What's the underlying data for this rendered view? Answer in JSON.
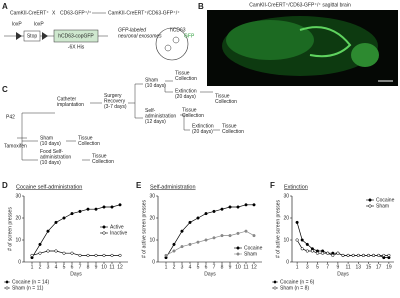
{
  "panels": {
    "letters": [
      "A",
      "B",
      "C",
      "D",
      "E",
      "F"
    ],
    "a": {
      "parent1": "CamKII-CreERT⁺",
      "cross": "X",
      "parent2": "CD63-GFP⁺/⁺",
      "offspring": "CamKII-CreERT⁺/CD63-GFP⁺/⁺",
      "loxp1": "loxP",
      "loxp2": "loxP",
      "stop": "Stop",
      "construct": "hCD63-copGFP",
      "tag": "-6X His",
      "exosome_lines": [
        "GFP-labeled",
        "neuronal exosomes"
      ],
      "hcd63": "hCD63",
      "gfp": "GFP"
    },
    "b": {
      "title": "CamKII-CreERT⁺/CD63-GFP⁺/⁺ sagittal brain"
    },
    "c": {
      "p42": "P42",
      "tamoxifen": "Tamoxifen",
      "nodes": [
        {
          "lines": [
            "Catheter",
            "implantation"
          ]
        },
        {
          "lines": [
            "Surgery",
            "Recovery",
            "(3-7 days)"
          ]
        },
        {
          "lines": [
            "Sham",
            "(10 days)"
          ]
        },
        {
          "lines": [
            "Tissue",
            "Collection"
          ]
        },
        {
          "lines": [
            "Extinction",
            "(20 days)"
          ]
        },
        {
          "lines": [
            "Tissue",
            "Collection"
          ]
        },
        {
          "lines": [
            "Self-",
            "administration",
            "(12 days)"
          ]
        },
        {
          "lines": [
            "Tissue",
            "Collection"
          ]
        },
        {
          "lines": [
            "Extinction",
            "(20 days)"
          ]
        },
        {
          "lines": [
            "Tissue",
            "Collection"
          ]
        },
        {
          "lines": [
            "Sham",
            "(10 days)"
          ]
        },
        {
          "lines": [
            "Tissue",
            "Collection"
          ]
        },
        {
          "lines": [
            "Food Self-",
            "administration",
            "(10 days)"
          ]
        },
        {
          "lines": [
            "Tissue",
            "Collection"
          ]
        }
      ]
    }
  },
  "chart_data": [
    {
      "type": "line",
      "title": "Cocaine self-administration",
      "xlabel": "Days",
      "ylabel": "# of screen presses",
      "x": [
        1,
        2,
        3,
        4,
        5,
        6,
        7,
        8,
        9,
        10,
        11,
        12
      ],
      "xlim": [
        0,
        13
      ],
      "xticks": [
        1,
        2,
        3,
        4,
        5,
        6,
        7,
        8,
        9,
        10,
        11,
        12
      ],
      "ylim": [
        0,
        30
      ],
      "yticks": [
        0,
        10,
        20,
        30
      ],
      "legend": "center right",
      "series": [
        {
          "name": "Active",
          "color": "#000000",
          "filled": true,
          "values": [
            2,
            8,
            14,
            18,
            20,
            22,
            23,
            24,
            24,
            25,
            25,
            26
          ]
        },
        {
          "name": "Inactive",
          "color": "#000000",
          "filled": false,
          "values": [
            3,
            4,
            5,
            5,
            4,
            4,
            3,
            3,
            3,
            3,
            3,
            3
          ]
        }
      ],
      "notes": [
        "Cocaine (n = 14)",
        "Sham (n = 11)"
      ]
    },
    {
      "type": "line",
      "title": "Self-administration",
      "xlabel": "Days",
      "ylabel": "# of active screen presses",
      "x": [
        1,
        2,
        3,
        4,
        5,
        6,
        7,
        8,
        9,
        10,
        11,
        12
      ],
      "xlim": [
        0,
        13
      ],
      "xticks": [
        1,
        2,
        3,
        4,
        5,
        6,
        7,
        8,
        9,
        10,
        11,
        12
      ],
      "ylim": [
        0,
        30
      ],
      "yticks": [
        0,
        10,
        20,
        30
      ],
      "legend": "lower right",
      "series": [
        {
          "name": "Cocaine",
          "color": "#000000",
          "filled": true,
          "values": [
            2,
            8,
            14,
            18,
            20,
            22,
            23,
            24,
            25,
            25,
            26,
            26
          ]
        },
        {
          "name": "Sham",
          "color": "#888888",
          "filled": true,
          "values": [
            3,
            5,
            7,
            8,
            9,
            10,
            11,
            12,
            12,
            13,
            14,
            12
          ]
        }
      ]
    },
    {
      "type": "line",
      "title": "Extinction",
      "xlabel": "Days",
      "ylabel": "# of active screen presses",
      "x": [
        1,
        2,
        3,
        4,
        5,
        6,
        7,
        8,
        9,
        10,
        11,
        12,
        13,
        14,
        15,
        16,
        17,
        18,
        19
      ],
      "xlim": [
        0,
        20
      ],
      "xticks": [
        1,
        3,
        5,
        7,
        9,
        11,
        13,
        15,
        17,
        19
      ],
      "ylim": [
        0,
        30
      ],
      "yticks": [
        0,
        10,
        20,
        30
      ],
      "legend": "upper right",
      "series": [
        {
          "name": "Cocaine",
          "color": "#000000",
          "filled": true,
          "values": [
            18,
            10,
            8,
            6,
            5,
            5,
            4,
            4,
            4,
            3,
            3,
            3,
            3,
            3,
            3,
            3,
            3,
            2,
            2
          ]
        },
        {
          "name": "Sham",
          "color": "#000000",
          "filled": false,
          "values": [
            10,
            6,
            5,
            5,
            4,
            4,
            4,
            3,
            4,
            3,
            3,
            3,
            3,
            3,
            3,
            3,
            3,
            3,
            3
          ]
        }
      ],
      "notes": [
        "Cocaine (n = 6)",
        "Sham (n = 8)"
      ]
    }
  ]
}
